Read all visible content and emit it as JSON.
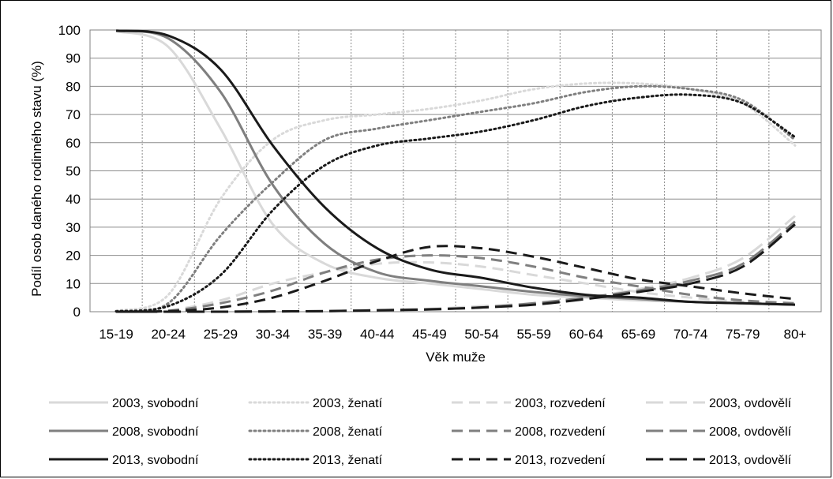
{
  "chart_data": {
    "type": "line",
    "title": "",
    "xlabel": "Věk muže",
    "ylabel": "Podíl osob daného rodinného stavu (%)",
    "ylim": [
      0,
      100
    ],
    "yticks": [
      "0",
      "10",
      "20",
      "30",
      "40",
      "50",
      "60",
      "70",
      "80",
      "90",
      "100"
    ],
    "grid": true,
    "legend_position": "bottom",
    "categories": [
      "15-19",
      "20-24",
      "25-29",
      "30-34",
      "35-39",
      "40-44",
      "45-49",
      "50-54",
      "55-59",
      "60-64",
      "65-69",
      "70-74",
      "75-79",
      "80+"
    ],
    "series": [
      {
        "name": "2003, svobodní",
        "color": "#d9d9d9",
        "dash": "solid",
        "values": [
          99.6,
          94,
          65,
          31,
          17,
          12,
          10,
          8,
          6,
          5,
          4,
          3.5,
          3,
          2.5
        ]
      },
      {
        "name": "2003, ženatí",
        "color": "#d9d9d9",
        "dash": "dotted",
        "values": [
          0.3,
          6,
          40,
          61,
          68,
          70,
          72,
          75,
          79,
          81,
          81,
          79,
          74,
          59
        ]
      },
      {
        "name": "2003, rozvedení",
        "color": "#d9d9d9",
        "dash": "dashed",
        "values": [
          0,
          0.5,
          4,
          10,
          14,
          17,
          17.5,
          16,
          13,
          10,
          7,
          5,
          3.5,
          2.5
        ]
      },
      {
        "name": "2003, ovdovělí",
        "color": "#d9d9d9",
        "dash": "longdash",
        "values": [
          0,
          0,
          0,
          0.2,
          0.3,
          0.6,
          1,
          2,
          3,
          5,
          8,
          12,
          19,
          34
        ]
      },
      {
        "name": "2008, svobodní",
        "color": "#7f7f7f",
        "dash": "solid",
        "values": [
          99.7,
          97,
          78,
          45,
          24,
          14,
          11,
          9,
          7,
          5.5,
          4.5,
          3.5,
          3,
          2.5
        ]
      },
      {
        "name": "2008, ženatí",
        "color": "#7f7f7f",
        "dash": "dotted",
        "values": [
          0.2,
          3,
          27,
          46,
          61,
          65,
          68,
          71,
          74,
          78,
          80,
          79,
          75,
          61
        ]
      },
      {
        "name": "2008, rozvedení",
        "color": "#7f7f7f",
        "dash": "dashed",
        "values": [
          0,
          0.3,
          3,
          7.5,
          14,
          18.5,
          20,
          19,
          16,
          12,
          9,
          6,
          4,
          3
        ]
      },
      {
        "name": "2008, ovdovělí",
        "color": "#7f7f7f",
        "dash": "longdash",
        "values": [
          0,
          0,
          0,
          0.1,
          0.2,
          0.5,
          0.9,
          1.5,
          3,
          5,
          7.5,
          11,
          17,
          32
        ]
      },
      {
        "name": "2013, svobodní",
        "color": "#1a1a1a",
        "dash": "solid",
        "values": [
          99.8,
          98,
          86,
          59,
          37,
          22.5,
          15,
          12,
          8.5,
          6,
          5,
          3.5,
          3,
          2.5
        ]
      },
      {
        "name": "2013, ženatí",
        "color": "#1a1a1a",
        "dash": "dotted",
        "values": [
          0.1,
          2,
          13,
          36,
          52,
          59,
          61.5,
          64,
          68,
          73,
          76,
          77,
          74,
          62
        ]
      },
      {
        "name": "2013, rozvedení",
        "color": "#1a1a1a",
        "dash": "dashed",
        "values": [
          0,
          0.2,
          1.5,
          5,
          11,
          18,
          23,
          22.5,
          19.5,
          15.5,
          11.5,
          9,
          6.5,
          4.5
        ]
      },
      {
        "name": "2013, ovdovělí",
        "color": "#1a1a1a",
        "dash": "longdash",
        "values": [
          0,
          0,
          0,
          0.1,
          0.2,
          0.5,
          0.8,
          1.5,
          2.5,
          4.5,
          7,
          10,
          16,
          31
        ]
      }
    ]
  }
}
